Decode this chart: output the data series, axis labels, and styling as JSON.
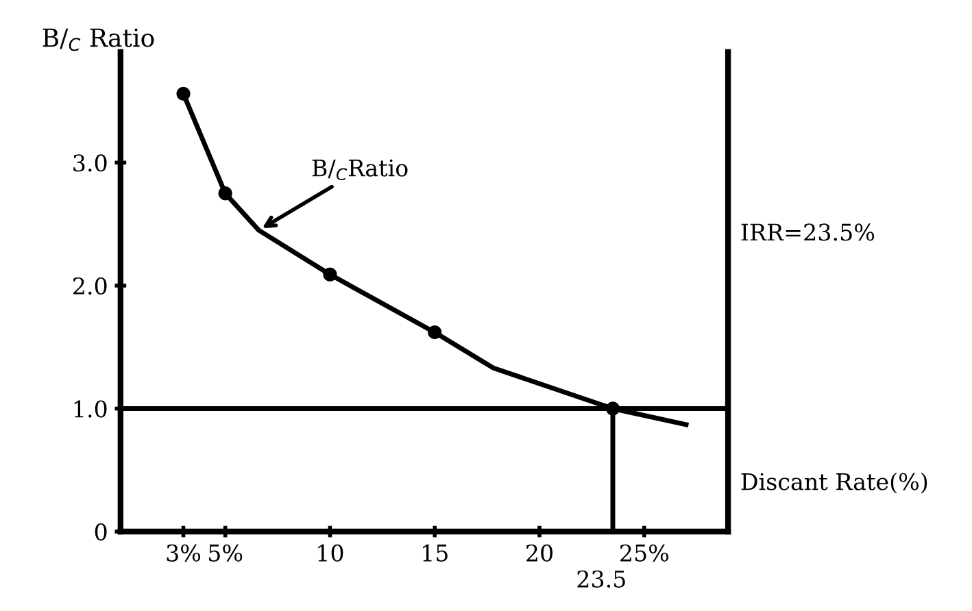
{
  "chart_data": {
    "type": "line",
    "ylabel": "B/$_{C}$ Ratio",
    "xlabel": "Discant Rate(%)",
    "xlim": [
      0,
      29
    ],
    "ylim": [
      0,
      3.9
    ],
    "xticks": [
      {
        "value": 3,
        "label": "3%"
      },
      {
        "value": 5,
        "label": "5%"
      },
      10,
      15,
      20,
      {
        "value": 25,
        "label": "25%"
      }
    ],
    "yticks": [
      0,
      {
        "value": 1,
        "label": "1.0"
      },
      {
        "value": 2,
        "label": "2.0"
      },
      {
        "value": 3,
        "label": "3.0"
      }
    ],
    "series": [
      {
        "color": "#000000",
        "marker": "none",
        "line_style": "solid",
        "x": [
          3,
          5,
          6.6,
          10,
          15,
          17.8,
          23.5,
          27
        ],
        "values": [
          3.56,
          2.75,
          2.45,
          2.09,
          1.62,
          1.33,
          1.0,
          0.87
        ]
      },
      {
        "type": "scatter",
        "color": "#000000",
        "marker": "circle",
        "x": [
          3,
          5,
          10,
          15,
          23.5
        ],
        "values": [
          3.56,
          2.75,
          2.09,
          1.62,
          1.0
        ]
      }
    ],
    "ref_lines": [
      {
        "axis": "y",
        "value": 1.0,
        "color": "#000000"
      },
      {
        "axis": "x",
        "value": 23.5,
        "label": "23.5",
        "color": "#000000"
      }
    ],
    "annotations": [
      {
        "text": "B/$_{C}$Ratio",
        "x": 6.6,
        "y": 2.45
      },
      "IRR=23.5%"
    ],
    "grid": false,
    "legend": false
  }
}
